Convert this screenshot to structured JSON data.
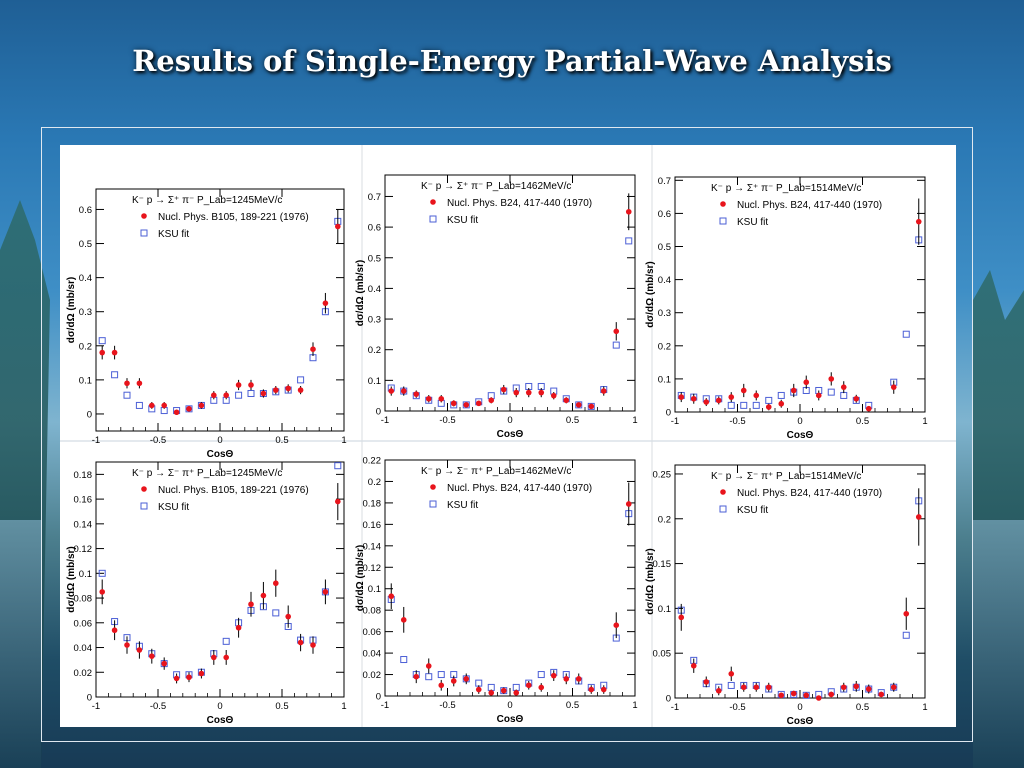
{
  "page": {
    "title": "Results of Single-Energy Partial-Wave Analysis"
  },
  "colors": {
    "data_marker": "#e8141c",
    "fit_marker": "#4b5fd6",
    "axis": "#000000"
  },
  "chart_data": [
    {
      "type": "scatter",
      "reaction": "K⁻ p → Σ⁺ π⁻",
      "plab": "P_Lab=1245MeV/c",
      "xlabel": "CosΘ",
      "ylabel": "dσ/dΩ (mb/sr)",
      "xlim": [
        -1,
        1
      ],
      "ylim": [
        -0.05,
        0.66
      ],
      "xticks": [
        -1,
        -0.5,
        0,
        0.5,
        1
      ],
      "yticks": [
        0,
        0.1,
        0.2,
        0.3,
        0.4,
        0.5,
        0.6
      ],
      "series": [
        {
          "name": "Nucl. Phys. B105, 189-221 (1976)",
          "marker": "dot",
          "x": [
            -0.95,
            -0.85,
            -0.75,
            -0.65,
            -0.55,
            -0.45,
            -0.35,
            -0.25,
            -0.15,
            -0.05,
            0.05,
            0.15,
            0.25,
            0.35,
            0.45,
            0.55,
            0.65,
            0.75,
            0.85,
            0.95
          ],
          "y": [
            0.18,
            0.18,
            0.09,
            0.09,
            0.025,
            0.025,
            0.005,
            0.015,
            0.025,
            0.055,
            0.055,
            0.085,
            0.085,
            0.06,
            0.07,
            0.075,
            0.07,
            0.19,
            0.325,
            0.55
          ],
          "err": [
            0.02,
            0.02,
            0.015,
            0.015,
            0.01,
            0.01,
            0.008,
            0.008,
            0.01,
            0.012,
            0.012,
            0.015,
            0.015,
            0.012,
            0.012,
            0.012,
            0.012,
            0.02,
            0.03,
            0.05
          ]
        },
        {
          "name": "KSU fit",
          "marker": "square",
          "x": [
            -0.95,
            -0.85,
            -0.75,
            -0.65,
            -0.55,
            -0.45,
            -0.35,
            -0.25,
            -0.15,
            -0.05,
            0.05,
            0.15,
            0.25,
            0.35,
            0.45,
            0.55,
            0.65,
            0.75,
            0.85,
            0.95
          ],
          "y": [
            0.215,
            0.115,
            0.055,
            0.025,
            0.015,
            0.01,
            0.01,
            0.015,
            0.025,
            0.04,
            0.04,
            0.055,
            0.06,
            0.06,
            0.065,
            0.07,
            0.1,
            0.165,
            0.3,
            0.565
          ]
        }
      ]
    },
    {
      "type": "scatter",
      "reaction": "K⁻ p → Σ⁺ π⁻",
      "plab": "P_Lab=1462MeV/c",
      "xlabel": "CosΘ",
      "ylabel": "dσ/dΩ (mb/sr)",
      "xlim": [
        -1,
        1
      ],
      "ylim": [
        0,
        0.77
      ],
      "xticks": [
        -1,
        -0.5,
        0,
        0.5,
        1
      ],
      "yticks": [
        0,
        0.1,
        0.2,
        0.3,
        0.4,
        0.5,
        0.6,
        0.7
      ],
      "series": [
        {
          "name": "Nucl. Phys. B24, 417-440 (1970)",
          "marker": "dot",
          "x": [
            -0.95,
            -0.85,
            -0.75,
            -0.65,
            -0.55,
            -0.45,
            -0.35,
            -0.25,
            -0.15,
            -0.05,
            0.05,
            0.15,
            0.25,
            0.35,
            0.45,
            0.55,
            0.65,
            0.75,
            0.85,
            0.95
          ],
          "y": [
            0.065,
            0.065,
            0.055,
            0.04,
            0.04,
            0.025,
            0.02,
            0.025,
            0.035,
            0.07,
            0.06,
            0.06,
            0.06,
            0.05,
            0.035,
            0.02,
            0.015,
            0.065,
            0.26,
            0.65
          ],
          "err": [
            0.015,
            0.015,
            0.012,
            0.012,
            0.012,
            0.01,
            0.008,
            0.008,
            0.01,
            0.015,
            0.015,
            0.015,
            0.015,
            0.012,
            0.01,
            0.008,
            0.008,
            0.015,
            0.03,
            0.06
          ]
        },
        {
          "name": "KSU fit",
          "marker": "square",
          "x": [
            -0.95,
            -0.85,
            -0.75,
            -0.65,
            -0.55,
            -0.45,
            -0.35,
            -0.25,
            -0.15,
            -0.05,
            0.05,
            0.15,
            0.25,
            0.35,
            0.45,
            0.55,
            0.65,
            0.75,
            0.85,
            0.95
          ],
          "y": [
            0.075,
            0.065,
            0.05,
            0.035,
            0.025,
            0.02,
            0.02,
            0.03,
            0.05,
            0.065,
            0.075,
            0.08,
            0.08,
            0.065,
            0.04,
            0.02,
            0.015,
            0.07,
            0.215,
            0.555
          ]
        }
      ]
    },
    {
      "type": "scatter",
      "reaction": "K⁻ p → Σ⁺ π⁻",
      "plab": "P_Lab=1514MeV/c",
      "xlabel": "CosΘ",
      "ylabel": "dσ/dΩ (mb/sr)",
      "xlim": [
        -1,
        1
      ],
      "ylim": [
        0,
        0.71
      ],
      "xticks": [
        -1,
        -0.5,
        0,
        0.5,
        1
      ],
      "yticks": [
        0,
        0.1,
        0.2,
        0.3,
        0.4,
        0.5,
        0.6,
        0.7
      ],
      "series": [
        {
          "name": "Nucl. Phys. B24, 417-440 (1970)",
          "marker": "dot",
          "x": [
            -0.95,
            -0.85,
            -0.75,
            -0.65,
            -0.55,
            -0.45,
            -0.35,
            -0.25,
            -0.15,
            -0.05,
            0.05,
            0.15,
            0.25,
            0.35,
            0.45,
            0.55,
            0.75,
            0.95
          ],
          "y": [
            0.045,
            0.04,
            0.03,
            0.035,
            0.045,
            0.065,
            0.05,
            0.015,
            0.025,
            0.065,
            0.09,
            0.05,
            0.1,
            0.075,
            0.04,
            0.01,
            0.075,
            0.575
          ],
          "err": [
            0.015,
            0.015,
            0.012,
            0.012,
            0.015,
            0.02,
            0.015,
            0.01,
            0.012,
            0.02,
            0.02,
            0.015,
            0.02,
            0.018,
            0.012,
            0.008,
            0.02,
            0.07
          ]
        },
        {
          "name": "KSU fit",
          "marker": "square",
          "x": [
            -0.95,
            -0.85,
            -0.75,
            -0.65,
            -0.55,
            -0.45,
            -0.35,
            -0.25,
            -0.15,
            -0.05,
            0.05,
            0.15,
            0.25,
            0.35,
            0.45,
            0.55,
            0.75,
            0.85,
            0.95
          ],
          "y": [
            0.05,
            0.045,
            0.04,
            0.04,
            0.02,
            0.02,
            0.02,
            0.035,
            0.05,
            0.06,
            0.065,
            0.065,
            0.06,
            0.05,
            0.035,
            0.02,
            0.09,
            0.235,
            0.52
          ]
        }
      ]
    },
    {
      "type": "scatter",
      "reaction": "K⁻ p → Σ⁻ π⁺",
      "plab": "P_Lab=1245MeV/c",
      "xlabel": "CosΘ",
      "ylabel": "dσ/dΩ (mb/sr)",
      "xlim": [
        -1,
        1
      ],
      "ylim": [
        0,
        0.19
      ],
      "xticks": [
        -1,
        -0.5,
        0,
        0.5,
        1
      ],
      "yticks": [
        0,
        0.02,
        0.04,
        0.06,
        0.08,
        0.1,
        0.12,
        0.14,
        0.16,
        0.18
      ],
      "series": [
        {
          "name": "Nucl. Phys. B105, 189-221 (1976)",
          "marker": "dot",
          "x": [
            -0.95,
            -0.85,
            -0.75,
            -0.65,
            -0.55,
            -0.45,
            -0.35,
            -0.25,
            -0.15,
            -0.05,
            0.05,
            0.15,
            0.25,
            0.35,
            0.45,
            0.55,
            0.65,
            0.75,
            0.85,
            0.95
          ],
          "y": [
            0.085,
            0.054,
            0.042,
            0.038,
            0.033,
            0.027,
            0.015,
            0.016,
            0.019,
            0.032,
            0.032,
            0.056,
            0.075,
            0.082,
            0.092,
            0.065,
            0.044,
            0.042,
            0.085,
            0.158
          ],
          "err": [
            0.01,
            0.008,
            0.007,
            0.007,
            0.006,
            0.005,
            0.004,
            0.004,
            0.004,
            0.006,
            0.006,
            0.008,
            0.01,
            0.011,
            0.011,
            0.009,
            0.007,
            0.007,
            0.01,
            0.015
          ]
        },
        {
          "name": "KSU fit",
          "marker": "square",
          "x": [
            -0.95,
            -0.85,
            -0.75,
            -0.65,
            -0.55,
            -0.45,
            -0.35,
            -0.25,
            -0.15,
            -0.05,
            0.05,
            0.15,
            0.25,
            0.35,
            0.45,
            0.55,
            0.65,
            0.75,
            0.85,
            0.95
          ],
          "y": [
            0.1,
            0.061,
            0.048,
            0.041,
            0.035,
            0.027,
            0.018,
            0.018,
            0.02,
            0.035,
            0.045,
            0.06,
            0.07,
            0.073,
            0.068,
            0.057,
            0.046,
            0.046,
            0.085,
            0.187
          ]
        }
      ]
    },
    {
      "type": "scatter",
      "reaction": "K⁻ p → Σ⁻ π⁺",
      "plab": "P_Lab=1462MeV/c",
      "xlabel": "CosΘ",
      "ylabel": "dσ/dΩ (mb/sr)",
      "xlim": [
        -1,
        1
      ],
      "ylim": [
        0,
        0.22
      ],
      "xticks": [
        -1,
        -0.5,
        0,
        0.5,
        1
      ],
      "yticks": [
        0,
        0.02,
        0.04,
        0.06,
        0.08,
        0.1,
        0.12,
        0.14,
        0.16,
        0.18,
        0.2,
        0.22
      ],
      "series": [
        {
          "name": "Nucl. Phys. B24, 417-440 (1970)",
          "marker": "dot",
          "x": [
            -0.95,
            -0.85,
            -0.75,
            -0.65,
            -0.55,
            -0.45,
            -0.35,
            -0.25,
            -0.15,
            -0.05,
            0.05,
            0.15,
            0.25,
            0.35,
            0.45,
            0.55,
            0.65,
            0.75,
            0.85,
            0.95
          ],
          "y": [
            0.093,
            0.071,
            0.018,
            0.028,
            0.01,
            0.014,
            0.016,
            0.006,
            0.003,
            0.005,
            0.003,
            0.01,
            0.008,
            0.019,
            0.016,
            0.016,
            0.006,
            0.006,
            0.066,
            0.179
          ],
          "err": [
            0.012,
            0.012,
            0.006,
            0.007,
            0.005,
            0.005,
            0.005,
            0.004,
            0.003,
            0.003,
            0.003,
            0.004,
            0.004,
            0.005,
            0.005,
            0.005,
            0.004,
            0.004,
            0.012,
            0.02
          ]
        },
        {
          "name": "KSU fit",
          "marker": "square",
          "x": [
            -0.95,
            -0.85,
            -0.75,
            -0.65,
            -0.55,
            -0.45,
            -0.35,
            -0.25,
            -0.15,
            -0.05,
            0.05,
            0.15,
            0.25,
            0.35,
            0.45,
            0.55,
            0.65,
            0.75,
            0.85,
            0.95
          ],
          "y": [
            0.09,
            0.034,
            0.02,
            0.018,
            0.02,
            0.02,
            0.016,
            0.012,
            0.008,
            0.005,
            0.008,
            0.012,
            0.02,
            0.022,
            0.02,
            0.014,
            0.008,
            0.01,
            0.054,
            0.17
          ]
        }
      ]
    },
    {
      "type": "scatter",
      "reaction": "K⁻ p → Σ⁻ π⁺",
      "plab": "P_Lab=1514MeV/c",
      "xlabel": "CosΘ",
      "ylabel": "dσ/dΩ (mb/sr)",
      "xlim": [
        -1,
        1
      ],
      "ylim": [
        0,
        0.26
      ],
      "xticks": [
        -1,
        -0.5,
        0,
        0.5,
        1
      ],
      "yticks": [
        0,
        0.05,
        0.1,
        0.15,
        0.2,
        0.25
      ],
      "series": [
        {
          "name": "Nucl. Phys. B24, 417-440 (1970)",
          "marker": "dot",
          "x": [
            -0.95,
            -0.85,
            -0.75,
            -0.65,
            -0.55,
            -0.45,
            -0.35,
            -0.25,
            -0.15,
            -0.05,
            0.05,
            0.15,
            0.25,
            0.35,
            0.45,
            0.55,
            0.65,
            0.75,
            0.85,
            0.95
          ],
          "y": [
            0.09,
            0.036,
            0.018,
            0.008,
            0.027,
            0.012,
            0.012,
            0.012,
            0.003,
            0.005,
            0.003,
            0.0,
            0.004,
            0.012,
            0.013,
            0.01,
            0.004,
            0.012,
            0.094,
            0.202
          ],
          "err": [
            0.015,
            0.008,
            0.006,
            0.005,
            0.008,
            0.005,
            0.005,
            0.005,
            0.003,
            0.003,
            0.003,
            0.002,
            0.003,
            0.005,
            0.006,
            0.005,
            0.003,
            0.005,
            0.018,
            0.032
          ]
        },
        {
          "name": "KSU fit",
          "marker": "square",
          "x": [
            -0.95,
            -0.85,
            -0.75,
            -0.65,
            -0.55,
            -0.45,
            -0.35,
            -0.25,
            -0.15,
            -0.05,
            0.05,
            0.15,
            0.25,
            0.35,
            0.45,
            0.55,
            0.65,
            0.75,
            0.85,
            0.95
          ],
          "y": [
            0.098,
            0.042,
            0.016,
            0.012,
            0.014,
            0.014,
            0.014,
            0.01,
            0.004,
            0.004,
            0.003,
            0.004,
            0.007,
            0.01,
            0.012,
            0.01,
            0.006,
            0.012,
            0.07,
            0.22
          ]
        }
      ]
    }
  ]
}
